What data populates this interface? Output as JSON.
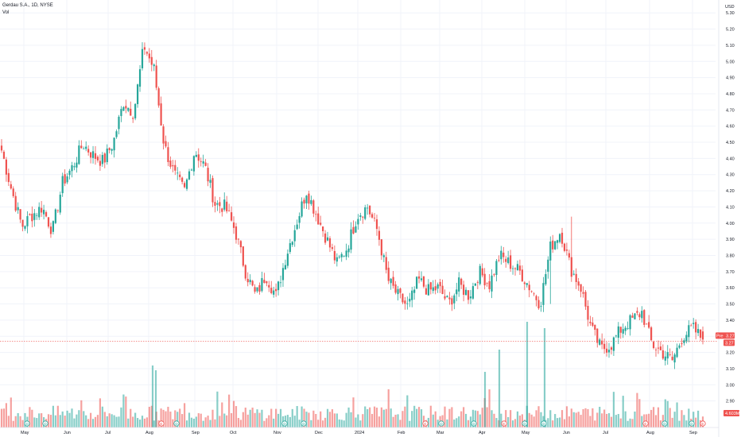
{
  "legend": {
    "symbol": "Gerdau S.A., 1D, NYSE",
    "volume_label": "Vol"
  },
  "currency": "USD",
  "chart_data": {
    "type": "candlestick",
    "ylim": [
      2.8,
      5.37
    ],
    "y_ticks": [
      "5.30",
      "5.20",
      "5.10",
      "5.00",
      "4.90",
      "4.80",
      "4.70",
      "4.60",
      "4.50",
      "4.40",
      "4.30",
      "4.20",
      "4.10",
      "4.00",
      "3.90",
      "3.80",
      "3.70",
      "3.60",
      "3.50",
      "3.40",
      "3.30",
      "3.20",
      "3.10",
      "3.00",
      "2.90"
    ],
    "x_ticks": [
      "May",
      "Jun",
      "Jul",
      "Aug",
      "Sep",
      "Oct",
      "Nov",
      "Dec",
      "2024",
      "Feb",
      "Mar",
      "Apr",
      "May",
      "Jun",
      "Jul",
      "Aug",
      "Sep"
    ],
    "grid": true,
    "up_color": "#26a69a",
    "down_color": "#ef5350",
    "price_anchors": [
      4.45,
      4.2,
      3.98,
      4.05,
      4.1,
      3.95,
      4.25,
      4.35,
      4.49,
      4.42,
      4.38,
      4.5,
      4.75,
      4.68,
      5.1,
      4.95,
      4.48,
      4.3,
      4.2,
      4.45,
      4.35,
      4.12,
      4.1,
      3.95,
      3.7,
      3.55,
      3.68,
      3.55,
      3.8,
      4.0,
      4.2,
      4.05,
      3.9,
      3.75,
      3.85,
      4.05,
      4.1,
      3.95,
      3.65,
      3.55,
      3.48,
      3.65,
      3.58,
      3.6,
      3.5,
      3.62,
      3.55,
      3.7,
      3.62,
      3.8,
      3.75,
      3.7,
      3.6,
      3.5,
      3.85,
      3.95,
      3.72,
      3.6,
      3.35,
      3.22,
      3.25,
      3.35,
      3.4,
      3.45,
      3.25,
      3.2,
      3.15,
      3.3,
      3.35,
      3.28
    ],
    "spikes": [
      {
        "i": 56,
        "high": 4.04
      },
      {
        "i": 62,
        "high": 2.94
      },
      {
        "i": 54,
        "low": 3.5
      }
    ],
    "last_price": {
      "pre_label": "Pre",
      "pre_value": "3.27",
      "value": "3.27"
    },
    "volume_label": "4.603M",
    "event_markers": [
      {
        "x_label": "May",
        "kind": "dividend",
        "text": "D"
      },
      {
        "x_label": "Jun",
        "kind": "dividend",
        "text": "D"
      },
      {
        "x_label": "Aug",
        "kind": "earnings",
        "text": "E"
      },
      {
        "x_label": "Sep",
        "kind": "dividend",
        "text": "D"
      },
      {
        "x_label": "Nov",
        "kind": "dividend",
        "text": "D"
      },
      {
        "x_label": "Nov",
        "kind": "dividend",
        "text": "D"
      },
      {
        "x_label": "Dec",
        "kind": "dividend",
        "text": "D"
      },
      {
        "x_label": "Feb",
        "kind": "earnings",
        "text": "E"
      },
      {
        "x_label": "Mar",
        "kind": "dividend",
        "text": "D"
      },
      {
        "x_label": "Apr",
        "kind": "earnings",
        "text": "E"
      },
      {
        "x_label": "May",
        "kind": "dividend",
        "text": "D"
      },
      {
        "x_label": "May",
        "kind": "dividend",
        "text": "D"
      },
      {
        "x_label": "Aug",
        "kind": "earnings",
        "text": "E"
      },
      {
        "x_label": "Aug",
        "kind": "dividend",
        "text": "D"
      },
      {
        "x_label": "Sep",
        "kind": "dividend",
        "text": "D"
      },
      {
        "x_label": "Sep",
        "kind": "earnings",
        "text": "E"
      }
    ]
  }
}
